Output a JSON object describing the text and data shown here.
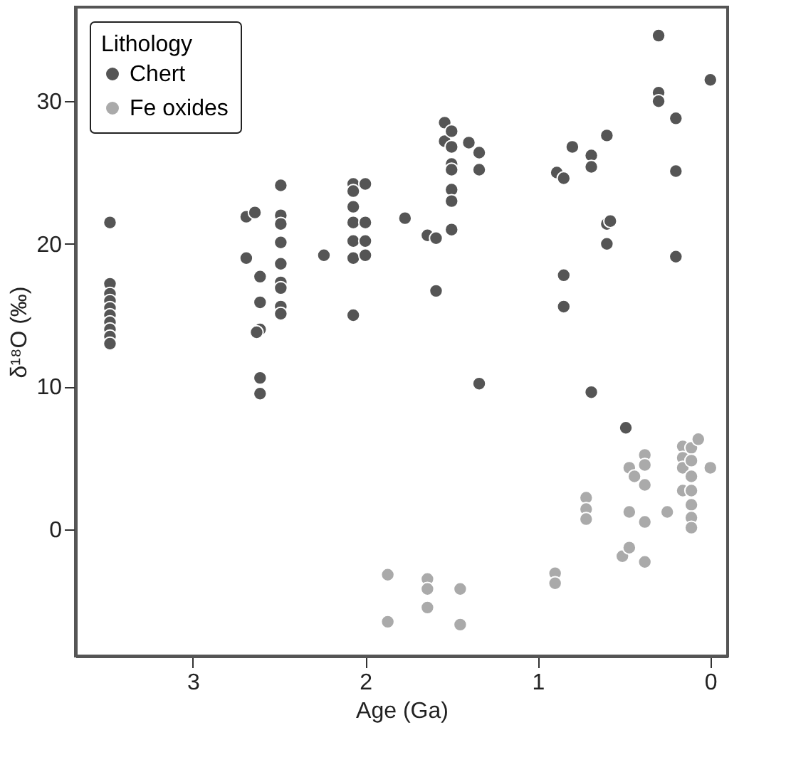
{
  "chart_data": {
    "type": "scatter",
    "xlabel": "Age (Ga)",
    "ylabel": "δ¹⁸O (‰)",
    "legend_title": "Lithology",
    "legend": "top left",
    "grid": false,
    "marker": "circle",
    "xlim": [
      3.68,
      -0.1
    ],
    "xticks": [
      3,
      2,
      1,
      0
    ],
    "ylim": [
      -8.9,
      36.6
    ],
    "yticks": [
      0,
      10,
      20,
      30
    ],
    "series": [
      {
        "name": "Chert",
        "color": "#555555",
        "x": [
          3.48,
          3.48,
          3.48,
          3.48,
          3.48,
          3.48,
          3.48,
          3.48,
          3.48,
          3.48,
          2.69,
          2.64,
          2.69,
          2.61,
          2.61,
          2.61,
          2.63,
          2.61,
          2.61,
          2.49,
          2.49,
          2.49,
          2.49,
          2.49,
          2.49,
          2.49,
          2.49,
          2.49,
          2.24,
          2.07,
          2.07,
          2.07,
          2.07,
          2.07,
          2.07,
          2.07,
          2.0,
          2.0,
          2.0,
          2.0,
          1.77,
          1.64,
          1.59,
          1.59,
          1.54,
          1.54,
          1.5,
          1.5,
          1.5,
          1.5,
          1.5,
          1.5,
          1.5,
          1.4,
          1.34,
          1.34,
          1.34,
          0.89,
          0.85,
          0.85,
          0.85,
          0.8,
          0.69,
          0.69,
          0.69,
          0.6,
          0.6,
          0.58,
          0.6,
          0.3,
          0.3,
          0.3,
          0.2,
          0.2,
          0.2,
          0.0,
          0.49
        ],
        "values": [
          21.5,
          17.2,
          16.5,
          16.0,
          15.5,
          15.0,
          14.5,
          14.0,
          13.5,
          13.0,
          21.9,
          22.2,
          19.0,
          17.7,
          15.9,
          14.0,
          13.8,
          10.6,
          9.5,
          24.1,
          22.0,
          21.4,
          20.1,
          18.6,
          17.3,
          16.9,
          15.6,
          15.1,
          19.2,
          24.2,
          23.7,
          22.6,
          21.5,
          20.2,
          19.0,
          15.0,
          24.2,
          21.5,
          20.2,
          19.2,
          21.8,
          20.6,
          20.4,
          16.7,
          28.5,
          27.2,
          27.9,
          26.8,
          25.6,
          25.2,
          23.8,
          23.0,
          21.0,
          27.1,
          26.4,
          25.2,
          10.2,
          25.0,
          24.6,
          17.8,
          15.6,
          26.8,
          26.2,
          25.4,
          9.6,
          27.6,
          21.4,
          21.6,
          20.0,
          34.6,
          30.6,
          30.0,
          28.8,
          25.1,
          19.1,
          31.5,
          7.1
        ]
      },
      {
        "name": "Fe oxides",
        "color": "#aaaaaa",
        "x": [
          1.87,
          1.87,
          1.64,
          1.64,
          1.64,
          1.45,
          1.45,
          0.9,
          0.9,
          0.72,
          0.72,
          0.72,
          0.51,
          0.47,
          0.47,
          0.47,
          0.44,
          0.38,
          0.38,
          0.38,
          0.38,
          0.38,
          0.25,
          0.16,
          0.16,
          0.16,
          0.16,
          0.11,
          0.11,
          0.11,
          0.11,
          0.11,
          0.11,
          0.11,
          0.07,
          0.0
        ],
        "values": [
          -3.2,
          -6.5,
          -3.5,
          -4.2,
          -5.5,
          -4.2,
          -6.7,
          -3.1,
          -3.8,
          2.2,
          1.4,
          0.7,
          -1.9,
          4.3,
          1.2,
          -1.3,
          3.7,
          5.2,
          4.5,
          3.1,
          0.5,
          -2.3,
          1.2,
          5.8,
          5.0,
          4.3,
          2.7,
          5.7,
          4.8,
          3.7,
          2.7,
          1.7,
          0.8,
          0.1,
          6.3,
          4.3
        ]
      }
    ]
  }
}
